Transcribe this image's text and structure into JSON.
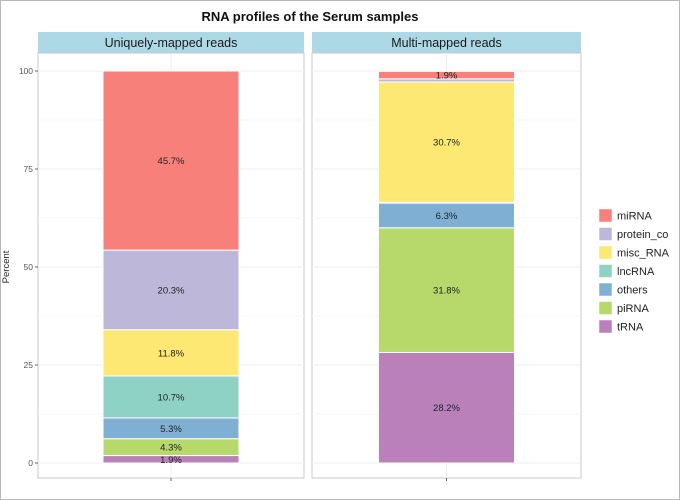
{
  "chart_data": {
    "type": "bar",
    "stacked": true,
    "title": "RNA profiles of the Serum samples",
    "ylabel": "Percent",
    "ylim": [
      0,
      100
    ],
    "yticks": [
      0,
      25,
      50,
      75,
      100
    ],
    "grid": true,
    "legend_position": "right",
    "legend_entries": [
      {
        "name": "miRNA",
        "color": "#F8807A"
      },
      {
        "name": "protein_co",
        "color": "#BDB7D9"
      },
      {
        "name": "misc_RNA",
        "color": "#FDE873"
      },
      {
        "name": "lncRNA",
        "color": "#8ED2C6"
      },
      {
        "name": "others",
        "color": "#7FB0D4"
      },
      {
        "name": "piRNA",
        "color": "#B7D86B"
      },
      {
        "name": "tRNA",
        "color": "#BA80BA"
      }
    ],
    "panels": [
      {
        "strip": "Uniquely-mapped reads",
        "segments": [
          {
            "series": "tRNA",
            "value": 1.9,
            "label": "1.9%"
          },
          {
            "series": "piRNA",
            "value": 4.3,
            "label": "4.3%"
          },
          {
            "series": "others",
            "value": 5.3,
            "label": "5.3%"
          },
          {
            "series": "lncRNA",
            "value": 10.7,
            "label": "10.7%"
          },
          {
            "series": "misc_RNA",
            "value": 11.8,
            "label": "11.8%"
          },
          {
            "series": "protein_co",
            "value": 20.3,
            "label": "20.3%"
          },
          {
            "series": "miRNA",
            "value": 45.7,
            "label": "45.7%"
          }
        ]
      },
      {
        "strip": "Multi-mapped reads",
        "segments": [
          {
            "series": "tRNA",
            "value": 28.2,
            "label": "28.2%"
          },
          {
            "series": "piRNA",
            "value": 31.8,
            "label": "31.8%"
          },
          {
            "series": "others",
            "value": 6.3,
            "label": "6.3%"
          },
          {
            "series": "lncRNA",
            "value": 0.2,
            "label": ""
          },
          {
            "series": "misc_RNA",
            "value": 30.7,
            "label": "30.7%"
          },
          {
            "series": "protein_co",
            "value": 0.8,
            "label": ""
          },
          {
            "series": "miRNA",
            "value": 1.9,
            "label": "1.9%"
          }
        ]
      }
    ]
  }
}
